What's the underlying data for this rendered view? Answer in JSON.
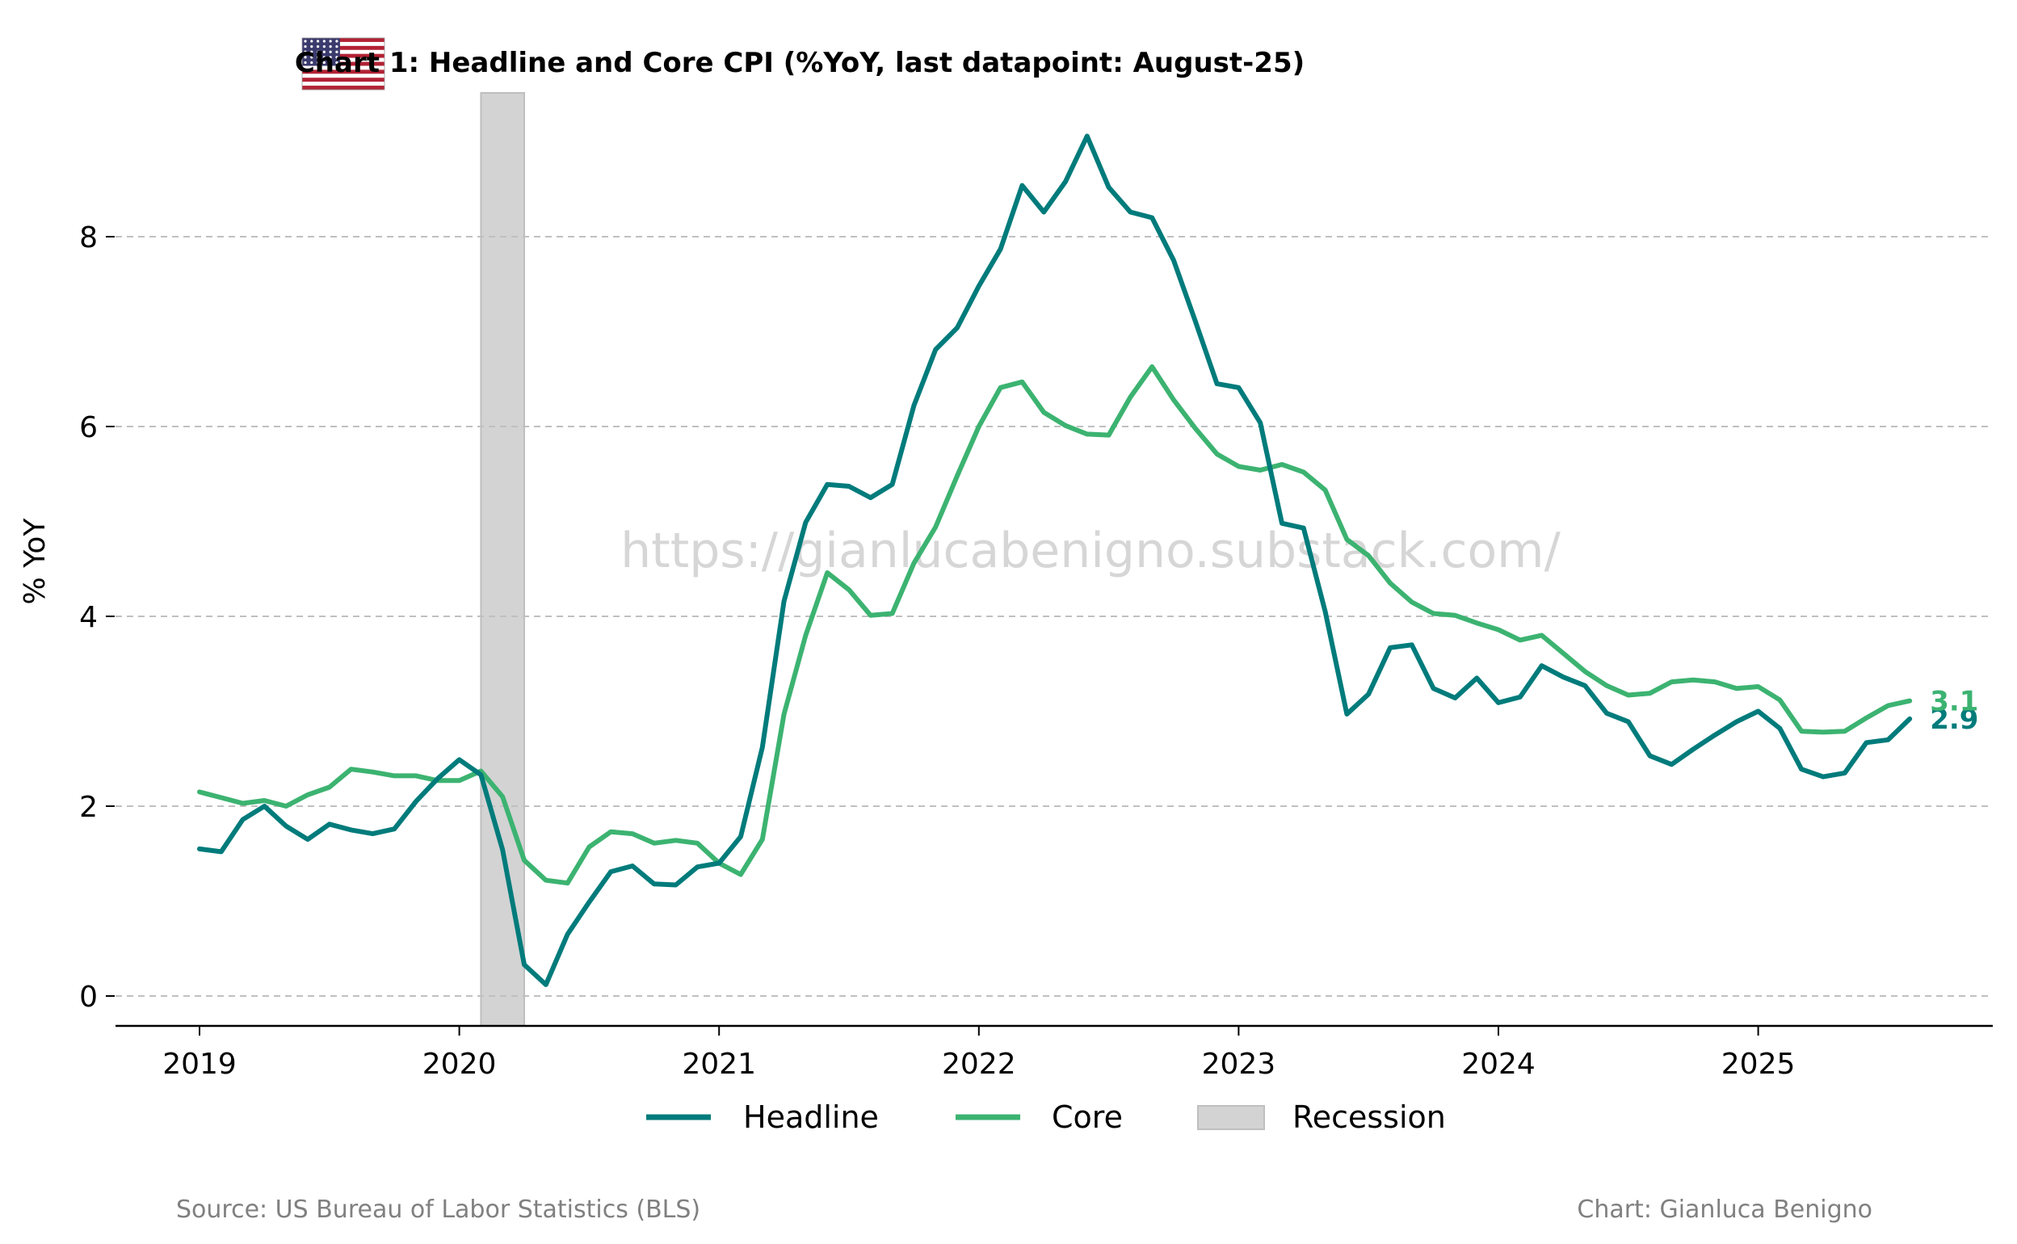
{
  "chart_data": {
    "type": "line",
    "title": "Chart 1: Headline and Core CPI (%YoY, last datapoint: August-25)",
    "xlabel": "",
    "ylabel": "% YoY",
    "x_start": "2019-01",
    "x_end": "2025-08",
    "x_ticks": [
      "2019",
      "2020",
      "2021",
      "2022",
      "2023",
      "2024",
      "2025"
    ],
    "ylim": [
      -0.3,
      9.5
    ],
    "y_ticks": [
      "0",
      "2",
      "4",
      "6",
      "8"
    ],
    "grid": "horizontal dashed",
    "legend_position": "bottom-center",
    "series": [
      {
        "name": "Headline",
        "color": "#007b7b",
        "end_label": "2.9",
        "values": [
          1.55,
          1.52,
          1.86,
          2.0,
          1.79,
          1.65,
          1.81,
          1.75,
          1.71,
          1.76,
          2.05,
          2.29,
          2.49,
          2.33,
          1.54,
          0.33,
          0.12,
          0.65,
          0.99,
          1.31,
          1.37,
          1.18,
          1.17,
          1.36,
          1.4,
          1.68,
          2.62,
          4.16,
          4.99,
          5.39,
          5.37,
          5.25,
          5.39,
          6.22,
          6.81,
          7.04,
          7.48,
          7.87,
          8.54,
          8.26,
          8.58,
          9.06,
          8.52,
          8.26,
          8.2,
          7.75,
          7.11,
          6.45,
          6.41,
          6.04,
          4.98,
          4.93,
          4.05,
          2.97,
          3.18,
          3.67,
          3.7,
          3.24,
          3.14,
          3.35,
          3.09,
          3.15,
          3.48,
          3.36,
          3.27,
          2.98,
          2.89,
          2.53,
          2.44,
          2.6,
          2.75,
          2.89,
          3.0,
          2.82,
          2.39,
          2.31,
          2.35,
          2.67,
          2.7,
          2.92
        ]
      },
      {
        "name": "Core",
        "color": "#3cb371",
        "end_label": "3.1",
        "values": [
          2.15,
          2.09,
          2.03,
          2.06,
          2.0,
          2.12,
          2.2,
          2.39,
          2.36,
          2.32,
          2.32,
          2.27,
          2.27,
          2.37,
          2.1,
          1.43,
          1.22,
          1.19,
          1.57,
          1.73,
          1.71,
          1.61,
          1.64,
          1.61,
          1.4,
          1.28,
          1.65,
          2.97,
          3.8,
          4.46,
          4.28,
          4.01,
          4.03,
          4.56,
          4.94,
          5.48,
          6.0,
          6.41,
          6.47,
          6.15,
          6.01,
          5.92,
          5.91,
          6.31,
          6.63,
          6.28,
          5.98,
          5.71,
          5.58,
          5.54,
          5.6,
          5.52,
          5.33,
          4.81,
          4.64,
          4.35,
          4.15,
          4.03,
          4.01,
          3.93,
          3.86,
          3.75,
          3.8,
          3.61,
          3.42,
          3.27,
          3.17,
          3.19,
          3.31,
          3.33,
          3.31,
          3.24,
          3.26,
          3.12,
          2.79,
          2.78,
          2.79,
          2.93,
          3.06,
          3.11
        ]
      }
    ],
    "shaded_regions": [
      {
        "name": "Recession",
        "start": "2020-02",
        "end": "2020-04",
        "color": "#d3d3d3"
      }
    ]
  },
  "legend": {
    "headline": "Headline",
    "core": "Core",
    "recession": "Recession"
  },
  "watermark": "https://gianlucabenigno.substack.com/",
  "footer": {
    "source": "Source: US Bureau of Labor Statistics (BLS)",
    "credit": "Chart: Gianluca Benigno"
  },
  "flag_icon": "us-flag-icon"
}
